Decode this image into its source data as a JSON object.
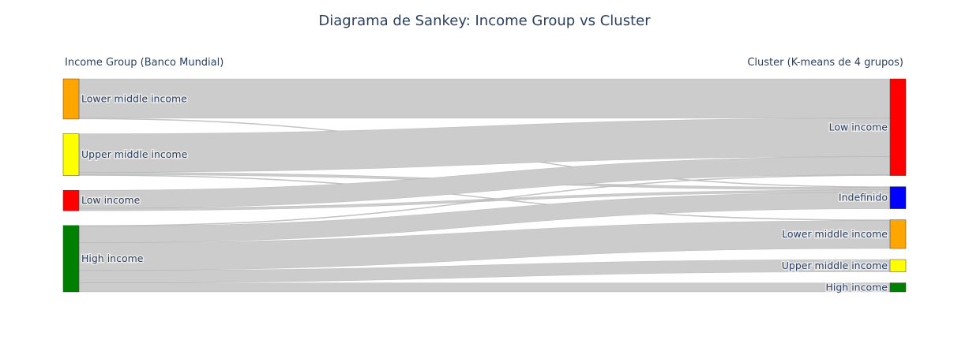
{
  "chart_data": {
    "type": "sankey",
    "title": "Diagrama de Sankey: Income Group vs Cluster",
    "source_axis_label": "Income Group (Banco Mundial)",
    "target_axis_label": "Cluster (K-means de 4 grupos)",
    "link_color": "#cccccc",
    "sources": [
      {
        "id": "s_lmi",
        "label": "Lower middle income",
        "color": "#ffa500"
      },
      {
        "id": "s_umi",
        "label": "Upper middle income",
        "color": "#ffff00"
      },
      {
        "id": "s_li",
        "label": "Low income",
        "color": "#ff0000"
      },
      {
        "id": "s_hi",
        "label": "High income",
        "color": "#008000"
      }
    ],
    "targets": [
      {
        "id": "t_li",
        "label": "Low income",
        "color": "#ff0000"
      },
      {
        "id": "t_ind",
        "label": "Indefinido",
        "color": "#0000ff"
      },
      {
        "id": "t_lmi",
        "label": "Lower middle income",
        "color": "#ffa500"
      },
      {
        "id": "t_umi",
        "label": "Upper middle income",
        "color": "#ffff00"
      },
      {
        "id": "t_hi",
        "label": "High income",
        "color": "#008000"
      }
    ],
    "links": [
      {
        "source": "s_lmi",
        "target": "t_li",
        "value": 48
      },
      {
        "source": "s_lmi",
        "target": "t_ind",
        "value": 1
      },
      {
        "source": "s_umi",
        "target": "t_li",
        "value": 47
      },
      {
        "source": "s_umi",
        "target": "t_ind",
        "value": 3
      },
      {
        "source": "s_umi",
        "target": "t_lmi",
        "value": 1
      },
      {
        "source": "s_li",
        "target": "t_li",
        "value": 22
      },
      {
        "source": "s_li",
        "target": "t_ind",
        "value": 3
      },
      {
        "source": "s_hi",
        "target": "t_li",
        "value": 1
      },
      {
        "source": "s_hi",
        "target": "t_ind",
        "value": 20
      },
      {
        "source": "s_hi",
        "target": "t_lmi",
        "value": 34
      },
      {
        "source": "s_hi",
        "target": "t_umi",
        "value": 15
      },
      {
        "source": "s_hi",
        "target": "t_hi",
        "value": 11
      }
    ]
  }
}
